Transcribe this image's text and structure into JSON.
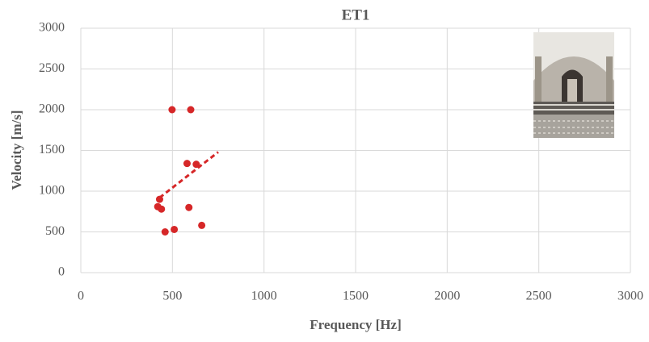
{
  "chart_data": {
    "type": "scatter",
    "title": "ET1",
    "x_label": "Frequency [Hz]",
    "y_label": "Velocity [m/s]",
    "x": [
      498,
      600,
      580,
      630,
      430,
      420,
      440,
      590,
      660,
      510,
      460
    ],
    "values": [
      2000,
      2000,
      1340,
      1330,
      900,
      810,
      780,
      800,
      580,
      530,
      500
    ],
    "color": "#d62728",
    "trendline": {
      "x": [
        430,
        750
      ],
      "y": [
        920,
        1480
      ],
      "color": "#d62728",
      "dashed": true
    },
    "xlim": [
      0,
      3000
    ],
    "xticks": [
      0,
      500,
      1000,
      1500,
      2000,
      2500,
      3000
    ],
    "ylim": [
      0,
      3000
    ],
    "yticks": [
      0,
      500,
      1000,
      1500,
      2000,
      2500,
      3000
    ],
    "grid": true
  }
}
